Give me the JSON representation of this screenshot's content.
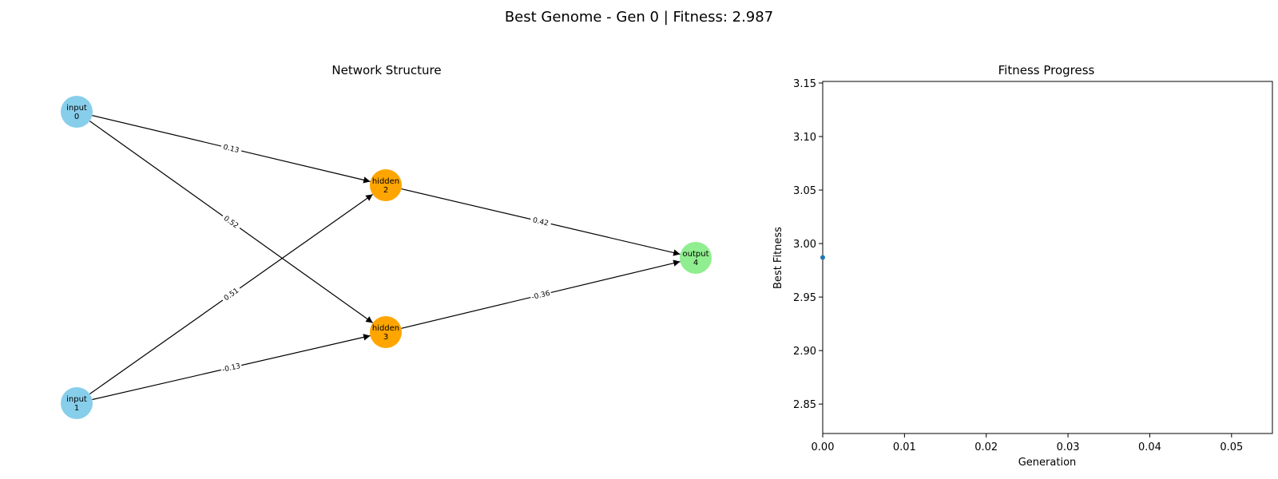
{
  "figure": {
    "suptitle": "Best Genome - Gen 0 | Fitness: 2.987"
  },
  "network": {
    "title": "Network Structure",
    "node_colors": {
      "input": "#87CEEB",
      "hidden": "#FFA500",
      "output": "#90EE90"
    },
    "nodes": [
      {
        "id": "0",
        "type": "input",
        "label_line1": "input",
        "label_line2": "0"
      },
      {
        "id": "1",
        "type": "input",
        "label_line1": "input",
        "label_line2": "1"
      },
      {
        "id": "2",
        "type": "hidden",
        "label_line1": "hidden",
        "label_line2": "2"
      },
      {
        "id": "3",
        "type": "hidden",
        "label_line1": "hidden",
        "label_line2": "3"
      },
      {
        "id": "4",
        "type": "output",
        "label_line1": "output",
        "label_line2": "4"
      }
    ],
    "edges": [
      {
        "from": "0",
        "to": "2",
        "weight": "0.13"
      },
      {
        "from": "0",
        "to": "3",
        "weight": "0.52"
      },
      {
        "from": "1",
        "to": "2",
        "weight": "0.51"
      },
      {
        "from": "1",
        "to": "3",
        "weight": "-0.13"
      },
      {
        "from": "2",
        "to": "4",
        "weight": "0.42"
      },
      {
        "from": "3",
        "to": "4",
        "weight": "-0.36"
      }
    ]
  },
  "chart_data": {
    "type": "line",
    "title": "Fitness Progress",
    "xlabel": "Generation",
    "ylabel": "Best Fitness",
    "xlim": [
      0,
      0.055
    ],
    "ylim": [
      2.8225,
      3.1515
    ],
    "xticks": [
      "0.00",
      "0.01",
      "0.02",
      "0.03",
      "0.04",
      "0.05"
    ],
    "yticks": [
      "2.85",
      "2.90",
      "2.95",
      "3.00",
      "3.05",
      "3.10",
      "3.15"
    ],
    "series": [
      {
        "x": [
          0
        ],
        "y": [
          2.987
        ],
        "color": "#1f77b4"
      }
    ],
    "grid": false
  }
}
